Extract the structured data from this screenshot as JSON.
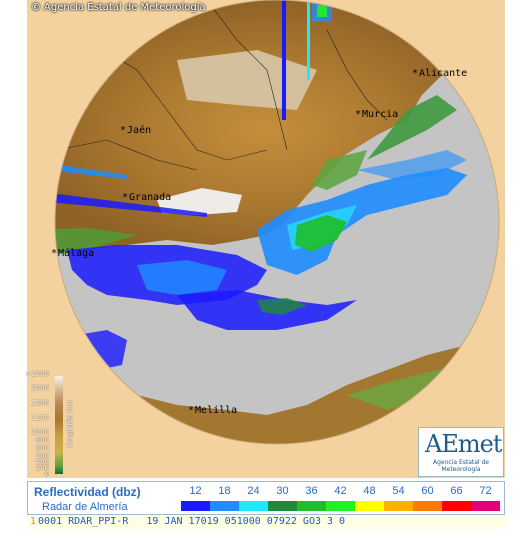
{
  "credit": "Agencia Estatal de Meteorología",
  "credit_symbol": "©",
  "cities": [
    {
      "name": "Alicante",
      "marker": "*"
    },
    {
      "name": "Murcia",
      "marker": "*"
    },
    {
      "name": "Jaén",
      "marker": "*"
    },
    {
      "name": "Granada",
      "marker": "*"
    },
    {
      "name": "Málaga",
      "marker": "*"
    },
    {
      "name": "Melilla",
      "marker": "*"
    }
  ],
  "elevation_legend": {
    "title": "Orografía (m)",
    "ticks": [
      ">2500",
      "2000",
      "1500",
      "1250",
      "1000",
      "800",
      "600",
      "500",
      "400",
      "200",
      "0"
    ]
  },
  "logo": {
    "mark": "AEmet",
    "subtitle": "Agencia Estatal de Meteorología"
  },
  "legend": {
    "title": "Reflectividad (dbz)",
    "radar": "Radar de Almería",
    "scale": [
      {
        "value": "12",
        "color": "#1a1aff"
      },
      {
        "value": "18",
        "color": "#1f8dff"
      },
      {
        "value": "24",
        "color": "#25e6ff"
      },
      {
        "value": "30",
        "color": "#1f8a3a"
      },
      {
        "value": "36",
        "color": "#1fbf2a"
      },
      {
        "value": "42",
        "color": "#22f022"
      },
      {
        "value": "48",
        "color": "#ffff00"
      },
      {
        "value": "54",
        "color": "#ffb000"
      },
      {
        "value": "60",
        "color": "#ff7a00"
      },
      {
        "value": "66",
        "color": "#ff0000"
      },
      {
        "value": "72",
        "color": "#e0007a"
      }
    ]
  },
  "status": {
    "index": "1",
    "text": "0001 RDAR_PPI-R   19 JAN 17019 051000 07922 GO3 3 0"
  },
  "colors": {
    "sea": "#c4c4c4",
    "lowland": "#3f9a3f",
    "midland": "#b88b46",
    "highland": "#f2f2f2",
    "outside_range": "#f3d2a0"
  }
}
